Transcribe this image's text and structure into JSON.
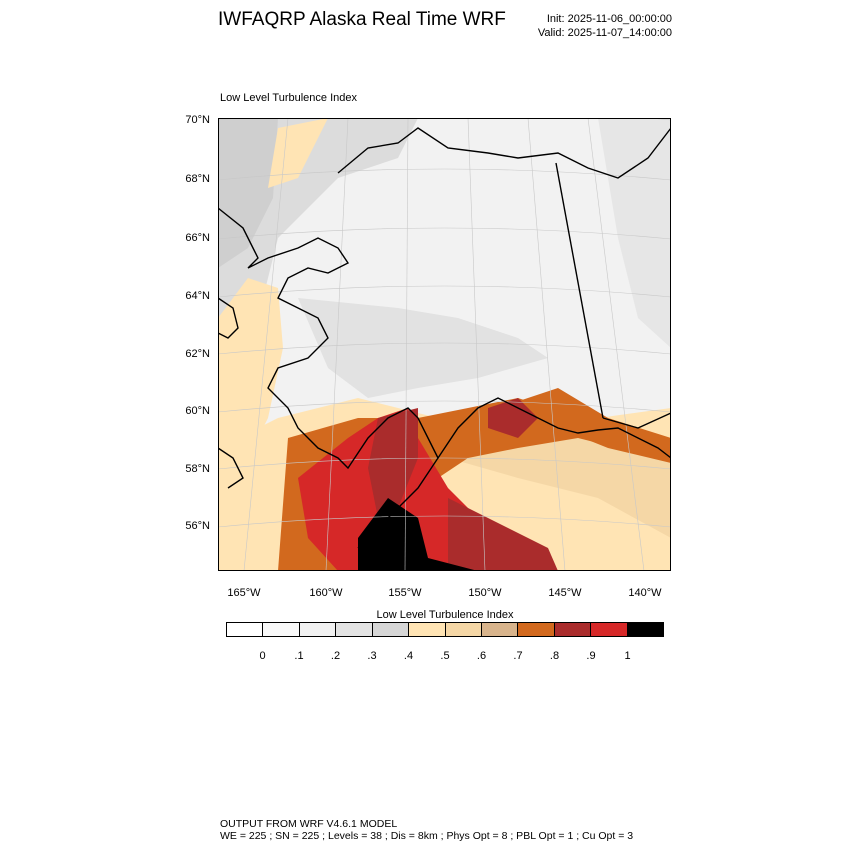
{
  "header": {
    "title": "IWFAQRP Alaska Real Time WRF",
    "init": "Init: 2025-11-06_00:00:00",
    "valid": "Valid: 2025-11-07_14:00:00"
  },
  "map": {
    "panel_title": "Low Level Turbulence Index",
    "lat_labels": [
      "70°N",
      "68°N",
      "66°N",
      "64°N",
      "62°N",
      "60°N",
      "58°N",
      "56°N"
    ],
    "lon_labels": [
      "165°W",
      "160°W",
      "155°W",
      "150°W",
      "145°W",
      "140°W"
    ]
  },
  "colorbar": {
    "title": "Low Level Turbulence Index",
    "colors": [
      "#ffffff",
      "#f9f9f9",
      "#f1f1f1",
      "#e3e3e3",
      "#d6d6d6",
      "#ffe4b4",
      "#f5d7a6",
      "#d8b48c",
      "#d2691e",
      "#aa2c2c",
      "#d62828",
      "#000000"
    ],
    "labels": [
      "0",
      ".1",
      ".2",
      ".3",
      ".4",
      ".5",
      ".6",
      ".7",
      ".8",
      ".9",
      "1"
    ]
  },
  "footer": {
    "line1": "OUTPUT FROM WRF V4.6.1 MODEL",
    "line2": "WE = 225 ; SN = 225 ; Levels = 38 ; Dis = 8km ; Phys Opt = 8 ; PBL Opt = 1 ; Cu Opt = 3"
  }
}
